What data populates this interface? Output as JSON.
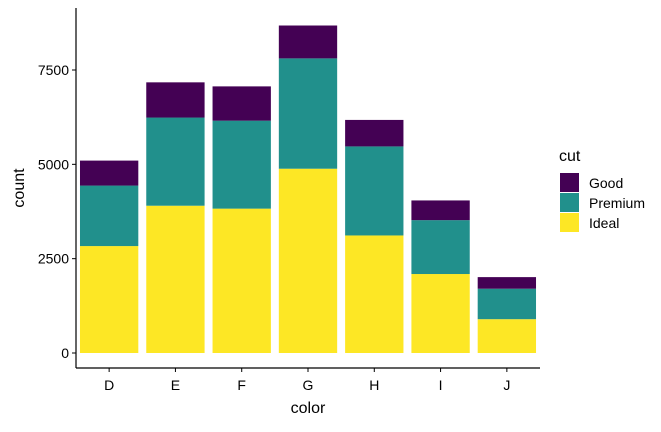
{
  "chart_data": {
    "type": "bar",
    "stacked": true,
    "title": "",
    "xlabel": "color",
    "ylabel": "count",
    "categories": [
      "D",
      "E",
      "F",
      "G",
      "H",
      "I",
      "J"
    ],
    "series": [
      {
        "name": "Ideal",
        "color": "#FDE725",
        "values": [
          2834,
          3903,
          3826,
          4884,
          3115,
          2093,
          896
        ]
      },
      {
        "name": "Premium",
        "color": "#21908C",
        "values": [
          1603,
          2337,
          2331,
          2924,
          2360,
          1428,
          808
        ]
      },
      {
        "name": "Good",
        "color": "#440154",
        "values": [
          662,
          933,
          909,
          871,
          702,
          522,
          307
        ]
      }
    ],
    "ylim": [
      0,
      8900
    ],
    "yticks": [
      0,
      2500,
      5000,
      7500
    ],
    "ytick_labels": [
      "0",
      "2500",
      "5000",
      "7500"
    ],
    "grid": false,
    "legend": {
      "title": "cut",
      "placement": "right",
      "order": [
        "Good",
        "Premium",
        "Ideal"
      ]
    }
  }
}
